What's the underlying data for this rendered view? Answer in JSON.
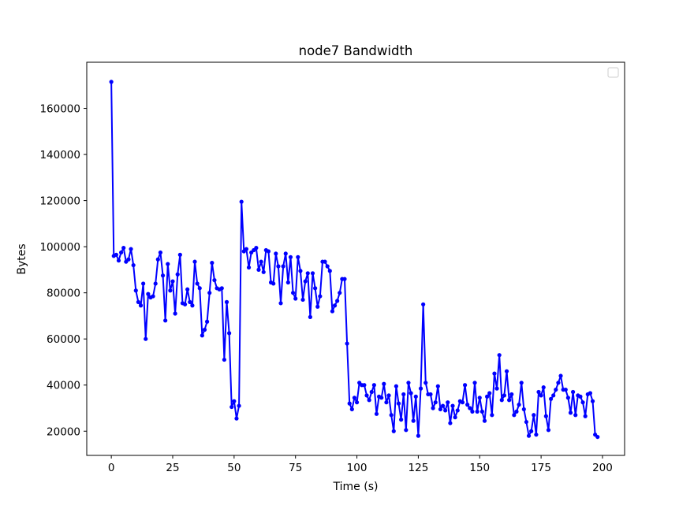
{
  "chart_data": {
    "type": "line",
    "title": "node7  Bandwidth",
    "xlabel": "Time (s)",
    "ylabel": "Bytes",
    "xlim": [
      -10,
      209
    ],
    "ylim": [
      9500,
      180000
    ],
    "xticks": [
      0,
      25,
      50,
      75,
      100,
      125,
      150,
      175,
      200
    ],
    "yticks": [
      20000,
      40000,
      60000,
      80000,
      100000,
      120000,
      140000,
      160000
    ],
    "xtick_labels": [
      "0",
      "25",
      "50",
      "75",
      "100",
      "125",
      "150",
      "175",
      "200"
    ],
    "ytick_labels": [
      "20000",
      "40000",
      "60000",
      "80000",
      "100000",
      "120000",
      "140000",
      "160000"
    ],
    "grid": false,
    "legend": "top-right, empty",
    "series": [
      {
        "color": "#0000ff",
        "marker": "circle",
        "x": [
          0,
          1,
          2,
          3,
          4,
          5,
          6,
          7,
          8,
          9,
          10,
          11,
          12,
          13,
          14,
          15,
          16,
          17,
          18,
          19,
          20,
          21,
          22,
          23,
          24,
          25,
          26,
          27,
          28,
          29,
          30,
          31,
          32,
          33,
          34,
          35,
          36,
          37,
          38,
          39,
          40,
          41,
          42,
          43,
          44,
          45,
          46,
          47,
          48,
          49,
          50,
          51,
          52,
          53,
          54,
          55,
          56,
          57,
          58,
          59,
          60,
          61,
          62,
          63,
          64,
          65,
          66,
          67,
          68,
          69,
          70,
          71,
          72,
          73,
          74,
          75,
          76,
          77,
          78,
          79,
          80,
          81,
          82,
          83,
          84,
          85,
          86,
          87,
          88,
          89,
          90,
          91,
          92,
          93,
          94,
          95,
          96,
          97,
          98,
          99,
          100,
          101,
          102,
          103,
          104,
          105,
          106,
          107,
          108,
          109,
          110,
          111,
          112,
          113,
          114,
          115,
          116,
          117,
          118,
          119,
          120,
          121,
          122,
          123,
          124,
          125,
          126,
          127,
          128,
          129,
          130,
          131,
          132,
          133,
          134,
          135,
          136,
          137,
          138,
          139,
          140,
          141,
          142,
          143,
          144,
          145,
          146,
          147,
          148,
          149,
          150,
          151,
          152,
          153,
          154,
          155,
          156,
          157,
          158,
          159,
          160,
          161,
          162,
          163,
          164,
          165,
          166,
          167,
          168,
          169,
          170,
          171,
          172,
          173,
          174,
          175,
          176,
          177,
          178,
          179,
          180,
          181,
          182,
          183,
          184,
          185,
          186,
          187,
          188,
          189,
          190,
          191,
          192,
          193,
          194,
          195,
          196,
          197,
          198
        ],
        "y": [
          171500,
          96000,
          96500,
          94000,
          97500,
          99500,
          93500,
          94500,
          99000,
          92000,
          81000,
          76000,
          74500,
          84000,
          60000,
          79500,
          78000,
          78500,
          84000,
          94500,
          97500,
          87500,
          68000,
          92500,
          81000,
          85000,
          71000,
          88000,
          96500,
          75500,
          75000,
          81500,
          76000,
          74500,
          93500,
          84000,
          82000,
          61500,
          64000,
          67500,
          80000,
          93000,
          85500,
          82000,
          81500,
          82000,
          51000,
          76000,
          62500,
          30500,
          33000,
          25500,
          31000,
          119500,
          98000,
          99000,
          91000,
          97500,
          98500,
          99500,
          90000,
          93500,
          89000,
          98500,
          98000,
          84500,
          84000,
          97000,
          91500,
          75500,
          91500,
          97000,
          84500,
          95500,
          80000,
          77500,
          95500,
          89500,
          77000,
          85000,
          88500,
          69500,
          88500,
          82000,
          74000,
          78500,
          93500,
          93500,
          91500,
          89500,
          72000,
          74500,
          76500,
          80000,
          86000,
          86000,
          58000,
          32000,
          29500,
          34500,
          32500,
          41000,
          40000,
          40000,
          35500,
          33500,
          37000,
          40000,
          27500,
          35000,
          34500,
          40500,
          32500,
          35500,
          27000,
          20000,
          39500,
          32000,
          25000,
          36000,
          20500,
          41000,
          36500,
          24500,
          35000,
          18000,
          38500,
          75000,
          41000,
          36000,
          36000,
          30000,
          32500,
          39500,
          29500,
          31000,
          29000,
          32500,
          23500,
          31000,
          26000,
          29000,
          33000,
          32500,
          40000,
          31500,
          30000,
          28500,
          41000,
          28500,
          34500,
          28500,
          24500,
          35000,
          36500,
          27000,
          45000,
          38500,
          53000,
          33500,
          35500,
          46000,
          33500,
          36000,
          27000,
          28500,
          31500,
          41000,
          29500,
          24000,
          18000,
          20000,
          27000,
          18500,
          37000,
          35500,
          39000,
          26500,
          20500,
          34000,
          35500,
          38000,
          41000,
          44000,
          38000,
          38000,
          34500,
          28000,
          37000,
          27000,
          35500,
          35000,
          32500,
          26500,
          36000,
          36500,
          33000,
          18500,
          17500
        ]
      }
    ]
  }
}
